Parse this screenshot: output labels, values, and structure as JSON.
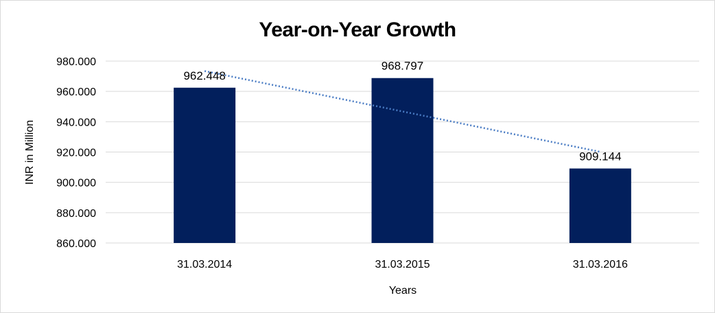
{
  "chart_data": {
    "type": "bar",
    "title": "Year-on-Year Growth",
    "xlabel": "Years",
    "ylabel": "INR in Million",
    "categories": [
      "31.03.2014",
      "31.03.2015",
      "31.03.2016"
    ],
    "values": [
      962.448,
      968.797,
      909.144
    ],
    "data_labels": [
      "962.448",
      "968.797",
      "909.144"
    ],
    "ylim": [
      860,
      980
    ],
    "yticks": [
      860,
      880,
      900,
      920,
      940,
      960,
      980
    ],
    "ytick_labels": [
      "860.000",
      "880.000",
      "900.000",
      "920.000",
      "940.000",
      "960.000",
      "980.000"
    ],
    "grid": true,
    "legend": false,
    "trendline": {
      "type": "linear",
      "style": "dotted",
      "color": "#4a7cc4"
    },
    "bar_color": "#021f5c"
  }
}
